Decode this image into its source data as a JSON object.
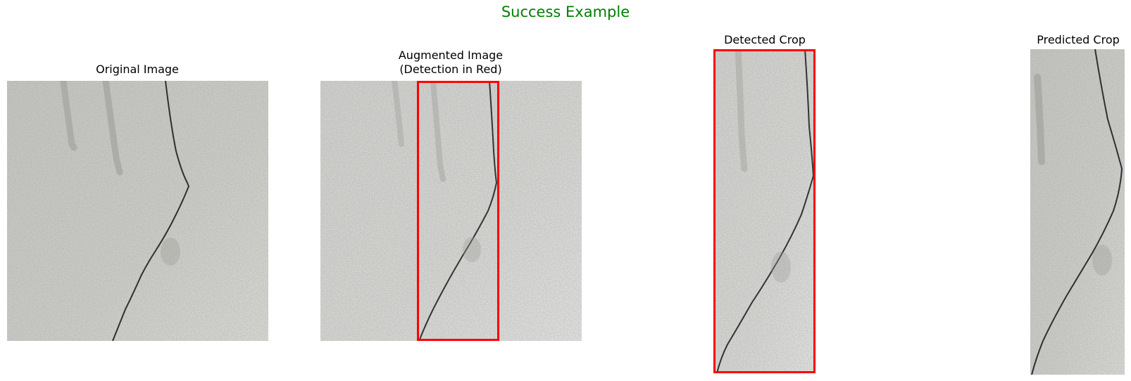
{
  "figure": {
    "title": "Success Example",
    "title_color": "#008000",
    "highlight_color": "#ff0000",
    "wall_color": "#cfcfcb"
  },
  "panels": [
    {
      "title": "Original Image"
    },
    {
      "title_lines": [
        "Augmented Image",
        "(Detection in Red)"
      ]
    },
    {
      "title": "Detected Crop"
    },
    {
      "title": "Predicted Crop"
    }
  ]
}
